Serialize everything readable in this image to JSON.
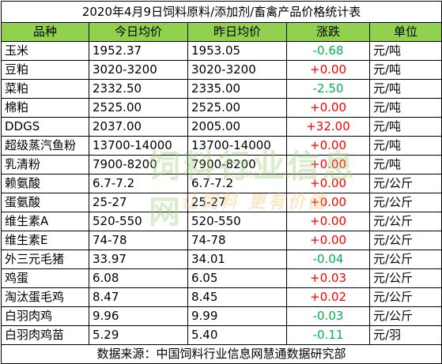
{
  "title": "2020年4月9日饲料原料/添加剂/畜禽产品价格统计表",
  "headers": {
    "name": "品种",
    "today": "今日均价",
    "yesterday": "昨日均价",
    "change": "涨跌",
    "unit": "单位"
  },
  "rows": [
    {
      "name": "玉米",
      "today": "1952.37",
      "yesterday": "1953.05",
      "change": "-0.68",
      "unit": "元/吨"
    },
    {
      "name": "豆粕",
      "today": "3020-3200",
      "yesterday": "3020-3200",
      "change": "+0.00",
      "unit": "元/吨"
    },
    {
      "name": "菜粕",
      "today": "2332.50",
      "yesterday": "2335.00",
      "change": "-2.50",
      "unit": "元/吨"
    },
    {
      "name": "棉粕",
      "today": "2525.00",
      "yesterday": "2525.00",
      "change": "+0.00",
      "unit": "元/吨"
    },
    {
      "name": "DDGS",
      "today": "2037.00",
      "yesterday": "2005.00",
      "change": "+32.00",
      "unit": "元/吨"
    },
    {
      "name": "超级蒸汽鱼粉",
      "today": "13700-14000",
      "yesterday": "13700-14000",
      "change": "+0.00",
      "unit": "元/吨"
    },
    {
      "name": "乳清粉",
      "today": "7900-8200",
      "yesterday": "7900-8200",
      "change": "+0.00",
      "unit": "元/吨"
    },
    {
      "name": "赖氨酸",
      "today": "6.7-7.2",
      "yesterday": "6.7-7.2",
      "change": "+0.00",
      "unit": "元/公斤"
    },
    {
      "name": "蛋氨酸",
      "today": "25-27",
      "yesterday": "25-27",
      "change": "+0.00",
      "unit": "元/公斤"
    },
    {
      "name": "维生素A",
      "today": "520-550",
      "yesterday": "520-550",
      "change": "+0.00",
      "unit": "元/公斤"
    },
    {
      "name": "维生素E",
      "today": "74-78",
      "yesterday": "74-78",
      "change": "+0.00",
      "unit": "元/公斤"
    },
    {
      "name": "外三元毛猪",
      "today": "33.97",
      "yesterday": "34.01",
      "change": "-0.04",
      "unit": "元/公斤"
    },
    {
      "name": "鸡蛋",
      "today": "6.08",
      "yesterday": "6.05",
      "change": "+0.03",
      "unit": "元/公斤"
    },
    {
      "name": "淘汰蛋毛鸡",
      "today": "8.47",
      "yesterday": "8.45",
      "change": "+0.02",
      "unit": "元/公斤"
    },
    {
      "name": "白羽肉鸡",
      "today": "9.96",
      "yesterday": "9.99",
      "change": "-0.03",
      "unit": "元/公斤"
    },
    {
      "name": "白羽肉鸡苗",
      "today": "5.29",
      "yesterday": "5.40",
      "change": "-0.11",
      "unit": "元/羽"
    }
  ],
  "footer": "数据来源：中国饲料行业信息网慧通数据研究部",
  "watermark": {
    "line1": "饲料行业信息网",
    "line2": "feedtrade.com.cn",
    "line3": "让饲料 更有价值"
  },
  "colors": {
    "header_bg": "#92d050",
    "negative": "#00b050",
    "positive": "#ff0000"
  }
}
